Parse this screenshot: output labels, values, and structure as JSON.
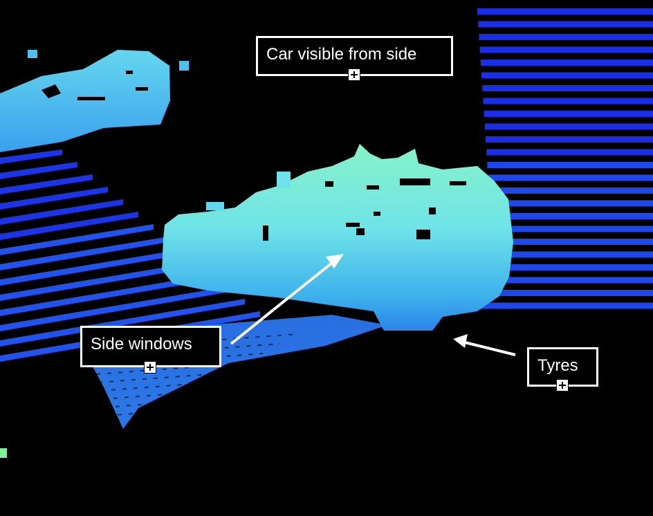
{
  "annotations": {
    "car": {
      "label": "Car visible from side",
      "expand_icon": "plus-square-icon"
    },
    "side_windows": {
      "label": "Side windows",
      "expand_icon": "plus-square-icon"
    },
    "tyres": {
      "label": "Tyres",
      "expand_icon": "plus-square-icon"
    }
  },
  "colors": {
    "background": "#000000",
    "scan_far": "#1a2ee6",
    "scan_mid": "#2f6ef0",
    "car_body": "#6fe0f0",
    "car_top": "#7ff2d0",
    "annotation_border": "#ffffff",
    "arrow": "#ffffff"
  }
}
